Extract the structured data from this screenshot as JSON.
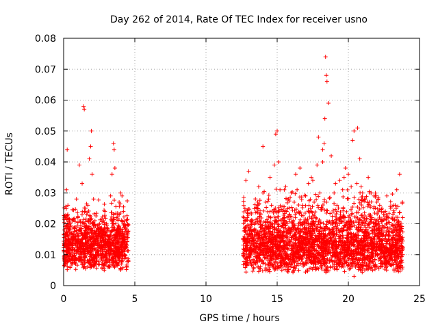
{
  "chart_data": {
    "type": "scatter",
    "title": "Day 262 of 2014, Rate Of TEC Index for receiver usno",
    "xlabel": "GPS time / hours",
    "ylabel": "ROTI / TECUs",
    "xlim": [
      0,
      25
    ],
    "ylim": [
      0,
      0.08
    ],
    "xticks": [
      0,
      5,
      10,
      15,
      20,
      25
    ],
    "yticks": [
      0,
      0.01,
      0.02,
      0.03,
      0.04,
      0.05,
      0.06,
      0.07,
      0.08
    ],
    "xtick_labels": [
      "0",
      "5",
      "10",
      "15",
      "20",
      "25"
    ],
    "ytick_labels": [
      "0",
      "0.01",
      "0.02",
      "0.03",
      "0.04",
      "0.05",
      "0.06",
      "0.07",
      "0.08"
    ],
    "grid": true,
    "marker": "+",
    "color": "#ff0000",
    "series": [
      {
        "name": "ROTI",
        "x": [
          0.05,
          0.12,
          0.2,
          0.25,
          0.3,
          0.35,
          0.4,
          0.5,
          0.6,
          0.7,
          0.8,
          0.9,
          1.0,
          1.1,
          1.2,
          1.3,
          1.4,
          1.45,
          1.5,
          1.6,
          1.7,
          1.8,
          1.9,
          1.95,
          2.0,
          2.1,
          2.2,
          2.3,
          2.4,
          2.5,
          2.6,
          2.7,
          2.8,
          2.9,
          3.0,
          3.1,
          3.2,
          3.3,
          3.4,
          3.5,
          3.55,
          3.6,
          3.7,
          3.8,
          3.9,
          4.0,
          4.1,
          4.2,
          4.3,
          4.4,
          4.5,
          0.15,
          0.45,
          0.75,
          1.05,
          1.35,
          1.65,
          2.05,
          2.45,
          2.85,
          3.25,
          3.65,
          4.05,
          4.45,
          0.3,
          1.3,
          1.35,
          1.9,
          2.0,
          3.5,
          3.55,
          0.25,
          0.5,
          1.0,
          1.5,
          2.2,
          2.7,
          3.0,
          3.9,
          4.3,
          12.7,
          12.9,
          13.0,
          13.2,
          13.4,
          13.6,
          13.8,
          14.0,
          14.2,
          14.4,
          14.6,
          14.8,
          14.9,
          15.0,
          15.1,
          15.2,
          15.4,
          15.6,
          15.8,
          16.0,
          16.2,
          16.4,
          16.6,
          16.8,
          17.0,
          17.2,
          17.4,
          17.6,
          17.8,
          18.0,
          18.2,
          18.3,
          18.35,
          18.4,
          18.45,
          18.5,
          18.6,
          18.8,
          19.0,
          19.2,
          19.4,
          19.6,
          19.8,
          20.0,
          20.2,
          20.4,
          20.6,
          20.65,
          20.8,
          21.0,
          21.2,
          21.4,
          21.6,
          21.8,
          22.0,
          22.2,
          22.4,
          22.6,
          22.8,
          23.0,
          23.2,
          23.4,
          23.6,
          23.8,
          13.1,
          13.5,
          14.1,
          14.7,
          15.3,
          15.9,
          16.5,
          17.1,
          17.7,
          18.1,
          18.7,
          19.3,
          19.9,
          20.5,
          21.1,
          21.7,
          22.3,
          22.9,
          23.5,
          13.3,
          14.3,
          14.9,
          15.0,
          16.1,
          17.3,
          18.4,
          18.45,
          18.5,
          19.5,
          20.0,
          20.1,
          20.6,
          21.3,
          22.5,
          23.7,
          12.8,
          13.7,
          14.5,
          15.5,
          16.3,
          17.5,
          18.2,
          19.1,
          19.7,
          20.3,
          20.9,
          21.5,
          22.1,
          22.7,
          23.3,
          14.0,
          17.9,
          20.4
        ],
        "y": [
          0.018,
          0.022,
          0.031,
          0.044,
          0.026,
          0.015,
          0.012,
          0.014,
          0.021,
          0.016,
          0.019,
          0.028,
          0.022,
          0.039,
          0.018,
          0.033,
          0.058,
          0.057,
          0.024,
          0.019,
          0.026,
          0.041,
          0.045,
          0.05,
          0.036,
          0.028,
          0.021,
          0.017,
          0.015,
          0.019,
          0.013,
          0.016,
          0.021,
          0.024,
          0.02,
          0.018,
          0.016,
          0.029,
          0.036,
          0.046,
          0.044,
          0.038,
          0.022,
          0.018,
          0.027,
          0.03,
          0.029,
          0.024,
          0.019,
          0.021,
          0.017,
          0.007,
          0.006,
          0.008,
          0.009,
          0.007,
          0.006,
          0.008,
          0.007,
          0.005,
          0.006,
          0.008,
          0.007,
          0.006,
          0.012,
          0.011,
          0.013,
          0.012,
          0.01,
          0.011,
          0.012,
          0.009,
          0.01,
          0.011,
          0.009,
          0.012,
          0.01,
          0.011,
          0.009,
          0.01,
          0.016,
          0.022,
          0.037,
          0.02,
          0.018,
          0.025,
          0.021,
          0.03,
          0.027,
          0.028,
          0.026,
          0.039,
          0.049,
          0.05,
          0.04,
          0.031,
          0.024,
          0.032,
          0.028,
          0.03,
          0.027,
          0.031,
          0.038,
          0.026,
          0.029,
          0.033,
          0.035,
          0.027,
          0.039,
          0.03,
          0.04,
          0.046,
          0.054,
          0.074,
          0.068,
          0.066,
          0.059,
          0.042,
          0.03,
          0.026,
          0.034,
          0.031,
          0.038,
          0.036,
          0.032,
          0.05,
          0.033,
          0.051,
          0.041,
          0.03,
          0.028,
          0.035,
          0.03,
          0.029,
          0.027,
          0.026,
          0.021,
          0.024,
          0.022,
          0.018,
          0.026,
          0.031,
          0.036,
          0.027,
          0.008,
          0.007,
          0.009,
          0.006,
          0.008,
          0.007,
          0.009,
          0.008,
          0.007,
          0.006,
          0.008,
          0.007,
          0.008,
          0.006,
          0.007,
          0.005,
          0.008,
          0.007,
          0.006,
          0.013,
          0.012,
          0.014,
          0.012,
          0.013,
          0.014,
          0.012,
          0.013,
          0.015,
          0.013,
          0.012,
          0.014,
          0.012,
          0.013,
          0.012,
          0.011,
          0.034,
          0.032,
          0.035,
          0.031,
          0.036,
          0.034,
          0.044,
          0.033,
          0.035,
          0.047,
          0.032,
          0.03,
          0.028,
          0.029,
          0.026,
          0.045,
          0.048,
          0.003
        ],
        "bands": [
          {
            "x_range": [
              0.0,
              4.55
            ],
            "y_range": [
              0.005,
              0.032
            ]
          },
          {
            "x_range": [
              12.6,
              23.85
            ],
            "y_range": [
              0.004,
              0.035
            ]
          }
        ]
      }
    ]
  }
}
